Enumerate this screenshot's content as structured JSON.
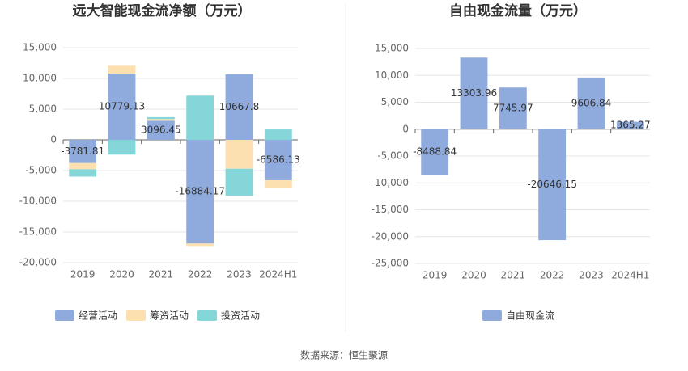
{
  "chart_data": [
    {
      "type": "stacked_bar",
      "title": "远大智能现金流净额（万元）",
      "categories": [
        "2019",
        "2020",
        "2021",
        "2022",
        "2023",
        "2024H1"
      ],
      "series": [
        {
          "name": "经营活动",
          "color": "#8faadc",
          "values": [
            -3781.81,
            10779.13,
            3096.45,
            -16884.17,
            10667.8,
            -6586.13
          ]
        },
        {
          "name": "筹资活动",
          "color": "#fde0b0",
          "values": [
            -1000,
            1300,
            300,
            -400,
            -4700,
            -1200
          ]
        },
        {
          "name": "投资活动",
          "color": "#85d6d8",
          "values": [
            -1200,
            -2400,
            300,
            7200,
            -4400,
            1700
          ]
        }
      ],
      "ylim": [
        -20000,
        15000
      ],
      "yticks": [
        {
          "value": -20000,
          "label": "-20,000"
        },
        {
          "value": -15000,
          "label": "-15,000"
        },
        {
          "value": -10000,
          "label": "-10,000"
        },
        {
          "value": -5000,
          "label": "-5,000"
        },
        0,
        {
          "value": 5000,
          "label": "5,000"
        },
        {
          "value": 10000,
          "label": "10,000"
        },
        {
          "value": 15000,
          "label": "15,000"
        }
      ],
      "grid": true,
      "legend": "bottom"
    },
    {
      "type": "bar",
      "title": "自由现金流量（万元）",
      "categories": [
        "2019",
        "2020",
        "2021",
        "2022",
        "2023",
        "2024H1"
      ],
      "series": [
        {
          "name": "自由现金流",
          "color": "#8faadc",
          "values": [
            -8488.84,
            13303.96,
            7745.97,
            -20646.15,
            9606.84,
            1365.27
          ]
        }
      ],
      "ylim": [
        -25000,
        15000
      ],
      "yticks": [
        {
          "value": -25000,
          "label": "-25,000"
        },
        {
          "value": -20000,
          "label": "-20,000"
        },
        {
          "value": -15000,
          "label": "-15,000"
        },
        {
          "value": -10000,
          "label": "-10,000"
        },
        {
          "value": -5000,
          "label": "-5,000"
        },
        0,
        {
          "value": 5000,
          "label": "5,000"
        },
        {
          "value": 10000,
          "label": "10,000"
        },
        {
          "value": 15000,
          "label": "15,000"
        }
      ],
      "grid": true,
      "legend": "bottom"
    }
  ],
  "source": "数据来源：恒生聚源"
}
